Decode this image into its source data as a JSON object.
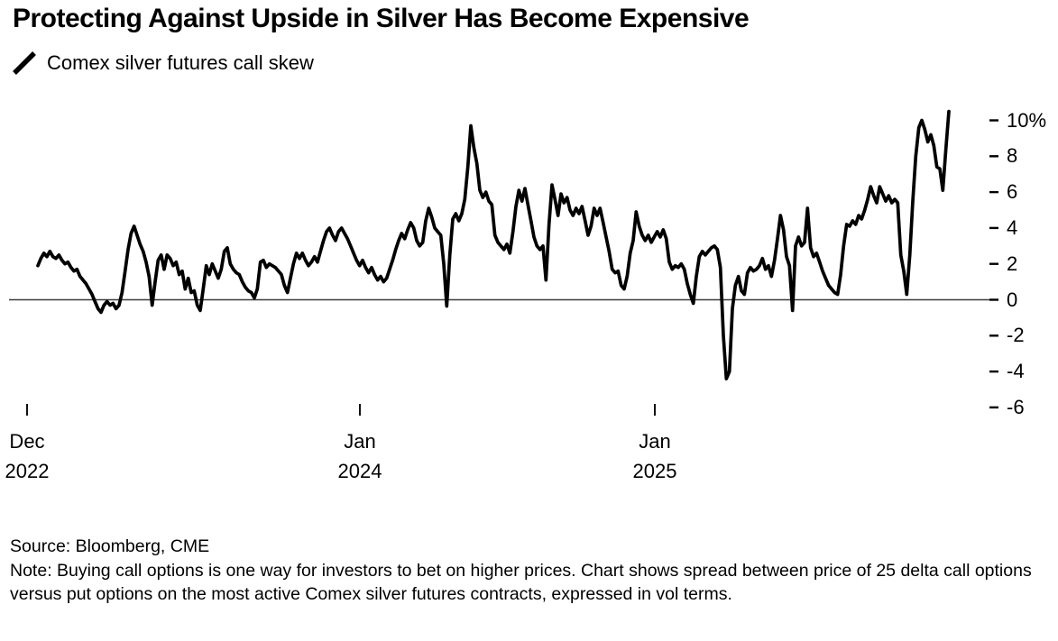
{
  "header": {
    "title": "Protecting Against Upside in Silver Has Become Expensive"
  },
  "legend": {
    "label": "Comex silver futures call skew",
    "series_color": "#000000"
  },
  "footer": {
    "source": "Source: Bloomberg, CME",
    "note": "Note: Buying call options is one way for investors to bet on higher prices. Chart shows spread between price of 25 delta call options versus put options on the most active Comex silver futures contracts, expressed in vol terms."
  },
  "chart_data": {
    "type": "line",
    "title": "Comex silver futures call skew",
    "unit": "vol points (%)",
    "line_color": "#000000",
    "zero_line": true,
    "zero_line_color": "#3a3a3a",
    "legend_position": "top-left",
    "grid": false,
    "y_axis": {
      "side": "right",
      "min": -6,
      "max": 10,
      "tick_labels": [
        "10%",
        "8",
        "6",
        "4",
        "2",
        "0",
        "-2",
        "-4",
        "-6"
      ]
    },
    "x_axis": {
      "ticks": [
        {
          "month": "Dec",
          "year": "2022"
        },
        {
          "month": "Jan",
          "year": "2024"
        },
        {
          "month": "Jan",
          "year": "2025"
        }
      ],
      "range": [
        "Dec 2022",
        "Nov 2025"
      ]
    },
    "values": [
      1.9,
      2.3,
      2.6,
      2.4,
      2.7,
      2.4,
      2.3,
      2.5,
      2.2,
      2.0,
      2.1,
      1.8,
      1.6,
      1.7,
      1.3,
      1.1,
      0.9,
      0.6,
      0.3,
      -0.1,
      -0.5,
      -0.7,
      -0.3,
      -0.1,
      -0.3,
      -0.2,
      -0.5,
      -0.3,
      0.4,
      1.6,
      2.8,
      3.7,
      4.1,
      3.6,
      3.1,
      2.7,
      2.1,
      1.3,
      -0.3,
      1.0,
      2.2,
      2.5,
      1.7,
      2.5,
      2.3,
      1.9,
      2.1,
      1.4,
      1.6,
      0.6,
      1.2,
      0.4,
      0.5,
      -0.3,
      -0.6,
      0.6,
      1.9,
      1.4,
      2.0,
      1.6,
      1.2,
      1.7,
      2.7,
      2.9,
      2.0,
      1.7,
      1.5,
      1.4,
      1.0,
      0.7,
      0.5,
      0.4,
      0.1,
      0.6,
      2.1,
      2.2,
      1.8,
      2.0,
      1.9,
      1.8,
      1.6,
      1.4,
      0.8,
      0.4,
      1.2,
      2.0,
      2.6,
      2.3,
      2.6,
      2.2,
      1.9,
      2.1,
      2.4,
      2.1,
      2.7,
      3.3,
      3.8,
      4.0,
      3.6,
      3.3,
      3.8,
      4.0,
      3.7,
      3.4,
      3.0,
      2.6,
      2.2,
      1.9,
      2.2,
      1.8,
      1.5,
      1.8,
      1.4,
      1.1,
      1.3,
      1.0,
      1.2,
      1.7,
      2.2,
      2.8,
      3.3,
      3.7,
      3.4,
      3.9,
      4.3,
      4.0,
      3.3,
      3.0,
      3.2,
      4.4,
      5.1,
      4.6,
      4.0,
      3.8,
      3.6,
      2.0,
      -0.35,
      2.5,
      4.5,
      4.8,
      4.4,
      4.8,
      5.6,
      7.4,
      9.7,
      8.5,
      7.6,
      6.1,
      5.7,
      6.0,
      5.5,
      5.3,
      3.6,
      3.2,
      3.0,
      2.8,
      3.1,
      2.6,
      3.8,
      5.2,
      6.1,
      5.5,
      6.2,
      5.3,
      4.4,
      3.5,
      3.0,
      2.8,
      3.0,
      1.1,
      4.2,
      6.4,
      5.6,
      4.7,
      5.9,
      5.4,
      5.7,
      5.0,
      4.7,
      5.1,
      4.8,
      5.2,
      4.4,
      3.6,
      4.1,
      5.1,
      4.7,
      5.1,
      4.3,
      3.5,
      2.7,
      1.7,
      1.5,
      1.6,
      0.8,
      0.6,
      1.3,
      2.6,
      3.3,
      4.9,
      4.1,
      3.6,
      3.3,
      3.6,
      3.2,
      3.5,
      3.8,
      3.5,
      3.9,
      3.4,
      2.1,
      1.7,
      1.9,
      1.8,
      2.0,
      1.7,
      0.9,
      0.3,
      -0.2,
      1.3,
      2.4,
      2.7,
      2.5,
      2.7,
      2.9,
      3.0,
      2.8,
      1.8,
      -2.0,
      -4.4,
      -4.0,
      -0.5,
      0.8,
      1.3,
      0.5,
      0.3,
      1.5,
      1.8,
      1.6,
      1.7,
      1.9,
      2.3,
      1.7,
      1.9,
      1.3,
      2.2,
      3.4,
      4.7,
      3.9,
      2.4,
      1.9,
      -0.6,
      3.0,
      3.5,
      3.0,
      3.2,
      5.1,
      2.9,
      2.4,
      2.6,
      2.1,
      1.6,
      1.2,
      0.8,
      0.6,
      0.4,
      0.3,
      1.4,
      3.0,
      4.2,
      4.1,
      4.4,
      4.2,
      4.7,
      4.5,
      5.0,
      5.6,
      6.3,
      5.8,
      5.4,
      6.3,
      5.9,
      5.5,
      5.8,
      5.4,
      5.6,
      5.4,
      2.5,
      1.6,
      0.3,
      2.5,
      5.5,
      8.0,
      9.6,
      10.0,
      9.5,
      8.8,
      9.2,
      8.6,
      7.4,
      7.3,
      6.1,
      8.4,
      10.5
    ]
  }
}
